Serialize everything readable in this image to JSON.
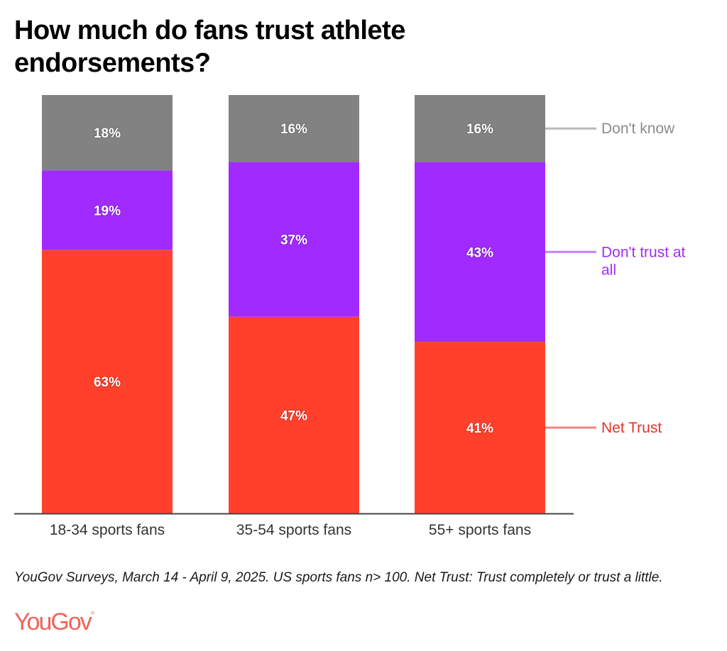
{
  "title": "How much do fans trust athlete endorsements?",
  "note": "YouGov Surveys, March 14 - April 9, 2025. US sports fans n> 100. Net Trust: Trust completely or trust a little.",
  "logo": "YouGov",
  "logo_mark": "®",
  "colors": {
    "net_trust": "#FF412C",
    "dont_trust": "#A12BFF",
    "dont_know": "#828282",
    "axis": "#444444"
  },
  "chart_data": {
    "type": "bar",
    "stacked": true,
    "orientation": "vertical",
    "title": "How much do fans trust athlete endorsements?",
    "xlabel": "",
    "ylabel": "",
    "ylim": [
      0,
      100
    ],
    "grid": false,
    "legend_position": "right",
    "categories": [
      "18-34 sports fans",
      "35-54 sports fans",
      "55+ sports fans"
    ],
    "series": [
      {
        "name": "Net Trust",
        "color": "#FF412C",
        "legend_color": "#E8322A",
        "values": [
          63,
          47,
          41
        ],
        "labels": [
          "63%",
          "47%",
          "41%"
        ]
      },
      {
        "name": "Don't trust at all",
        "legend_lines": [
          "Don't trust at",
          "all"
        ],
        "color": "#A12BFF",
        "legend_color": "#A12BFF",
        "values": [
          19,
          37,
          43
        ],
        "labels": [
          "19%",
          "37%",
          "43%"
        ]
      },
      {
        "name": "Don't know",
        "color": "#828282",
        "legend_color": "#8a8a8a",
        "values": [
          18,
          16,
          16
        ],
        "labels": [
          "18%",
          "16%",
          "16%"
        ]
      }
    ]
  }
}
